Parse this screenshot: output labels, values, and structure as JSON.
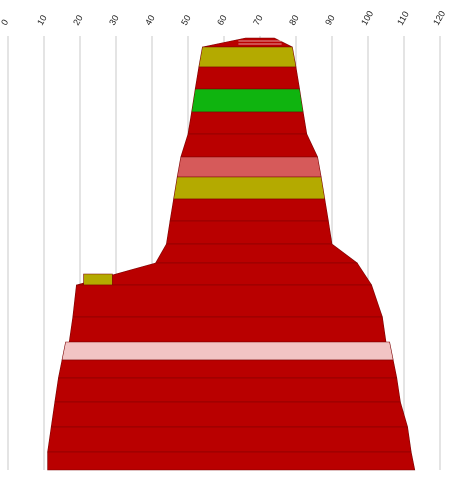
{
  "chart_data": {
    "type": "area",
    "title": "",
    "xlabel": "",
    "ylabel": "",
    "xlim": [
      0,
      120
    ],
    "x_ticks": [
      0,
      10,
      20,
      30,
      40,
      50,
      60,
      70,
      80,
      90,
      100,
      110,
      120
    ],
    "grid": "vertical",
    "colors": {
      "red": "#b90000",
      "olive": "#b4aa00",
      "green": "#0fb40f",
      "salmon": "#d65a5a",
      "pink": "#f2c4c4"
    },
    "layers": [
      {
        "index": 1,
        "left": 66,
        "right": 74,
        "color": "red"
      },
      {
        "index": 2,
        "left": 54,
        "right": 79,
        "color": "olive"
      },
      {
        "index": 3,
        "left": 53,
        "right": 80,
        "color": "red"
      },
      {
        "index": 4,
        "left": 52,
        "right": 81,
        "color": "green"
      },
      {
        "index": 5,
        "left": 51,
        "right": 82,
        "color": "red"
      },
      {
        "index": 6,
        "left": 50,
        "right": 83,
        "color": "red"
      },
      {
        "index": 7,
        "left": 48,
        "right": 86,
        "color": "salmon"
      },
      {
        "index": 8,
        "left": 47,
        "right": 87,
        "color": "olive"
      },
      {
        "index": 9,
        "left": 46,
        "right": 88,
        "color": "red"
      },
      {
        "index": 10,
        "left": 45,
        "right": 89,
        "color": "red"
      },
      {
        "index": 11,
        "left": 44,
        "right": 90,
        "color": "red"
      },
      {
        "index": 12,
        "left": 41,
        "right": 97,
        "color": "red"
      },
      {
        "index": 13,
        "left": 21,
        "right": 29,
        "color": "olive"
      },
      {
        "index": 14,
        "left": 19,
        "right": 101,
        "color": "red"
      },
      {
        "index": 15,
        "left": 18,
        "right": 104,
        "color": "red"
      },
      {
        "index": 16,
        "left": 17,
        "right": 105,
        "color": "red"
      },
      {
        "index": 17,
        "left": 16,
        "right": 106,
        "color": "pink"
      },
      {
        "index": 18,
        "left": 15,
        "right": 107,
        "color": "red"
      },
      {
        "index": 19,
        "left": 14,
        "right": 108,
        "color": "red"
      },
      {
        "index": 20,
        "left": 13,
        "right": 109,
        "color": "red"
      },
      {
        "index": 21,
        "left": 12,
        "right": 111,
        "color": "red"
      },
      {
        "index": 22,
        "left": 11,
        "right": 112,
        "color": "red"
      }
    ]
  }
}
